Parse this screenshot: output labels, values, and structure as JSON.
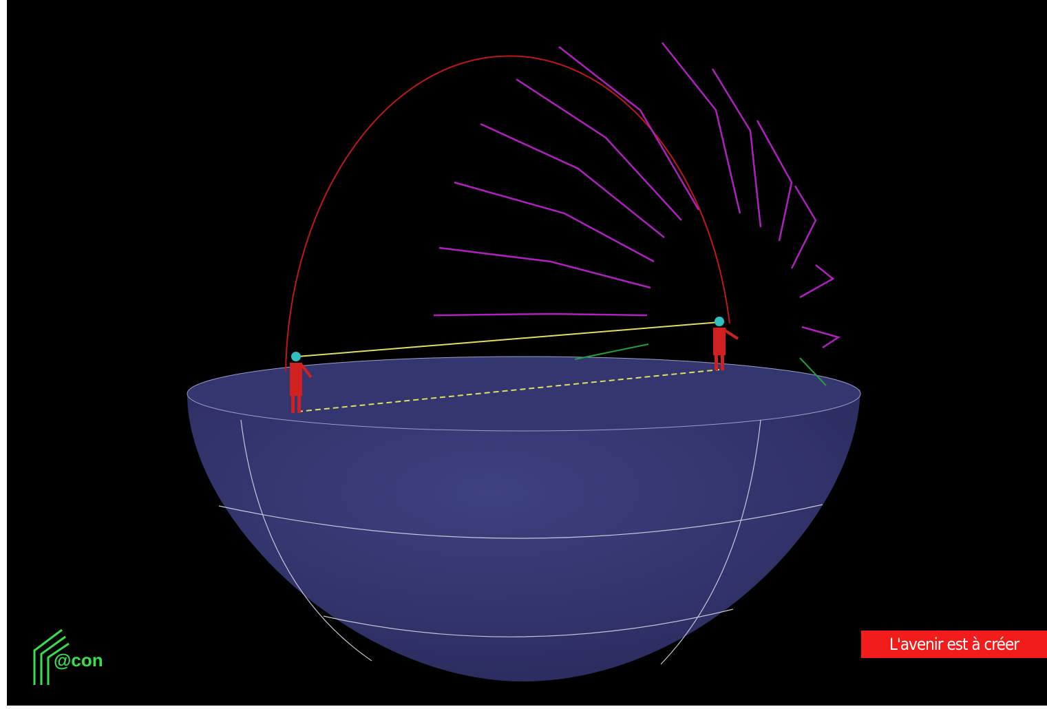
{
  "banner": {
    "text": "L'avenir est à créer"
  },
  "logo": {
    "text": "@con"
  }
}
